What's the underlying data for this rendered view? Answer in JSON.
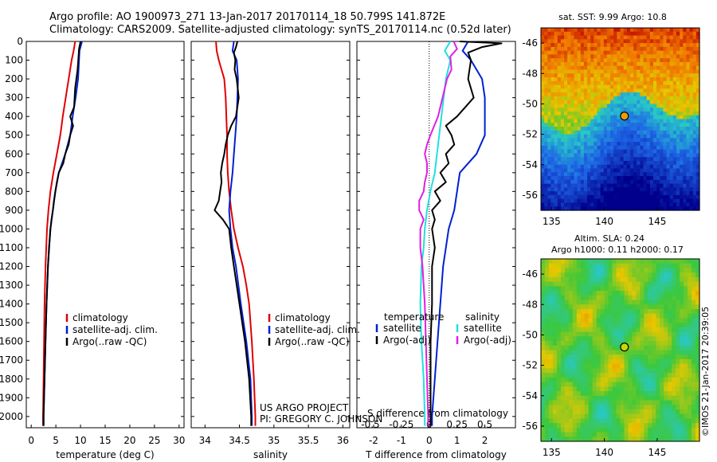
{
  "header": {
    "line1": "Argo profile: AO 1900973_271 13-Jan-2017 20170114_18 50.799S 141.872E",
    "line2": "Climatology: CARS2009. Satellite-adjusted climatology: synTS_20170114.nc (0.52d later)"
  },
  "credits": {
    "project": "US ARGO PROJECT",
    "pi": "PI: GREGORY C. JOHNSON",
    "imos": "©IMOS 21-Jan-2017 20:39:05"
  },
  "colors": {
    "climatology": "#e00000",
    "satellite": "#0020d0",
    "argo": "#000000",
    "t_sat": "#0020d0",
    "t_argo": "#000000",
    "s_sat": "#20e0e0",
    "s_argo": "#e020e0"
  },
  "chart_data": [
    {
      "id": "temperature",
      "type": "line",
      "xlabel": "temperature (deg C)",
      "ylabel": "",
      "xlim": [
        -1,
        31
      ],
      "ylim": [
        0,
        2060
      ],
      "y_inverted": true,
      "xticks": [
        0,
        5,
        10,
        15,
        20,
        25,
        30
      ],
      "yticks": [
        0,
        100,
        200,
        300,
        400,
        500,
        600,
        700,
        800,
        900,
        1000,
        1100,
        1200,
        1300,
        1400,
        1500,
        1600,
        1700,
        1800,
        1900,
        2000
      ],
      "legend": [
        "climatology",
        "satellite-adj. clim.",
        "Argo(..raw -QC)"
      ],
      "series": [
        {
          "name": "climatology",
          "depth": [
            0,
            50,
            100,
            200,
            300,
            400,
            500,
            600,
            700,
            800,
            900,
            1000,
            1200,
            1400,
            1600,
            1800,
            2000,
            2050
          ],
          "values": [
            8.9,
            8.6,
            8.2,
            7.6,
            7.0,
            6.4,
            5.9,
            5.2,
            4.5,
            3.9,
            3.5,
            3.2,
            2.9,
            2.7,
            2.6,
            2.5,
            2.4,
            2.4
          ]
        },
        {
          "name": "satellite-adj. clim.",
          "depth": [
            0,
            50,
            100,
            200,
            300,
            400,
            500,
            600,
            700,
            800,
            900,
            1000,
            1200,
            1400,
            1600,
            1800,
            2000,
            2050
          ],
          "values": [
            10.3,
            9.8,
            9.7,
            9.5,
            9.0,
            8.4,
            7.9,
            6.9,
            5.6,
            4.9,
            4.4,
            3.9,
            3.4,
            3.1,
            2.9,
            2.7,
            2.5,
            2.5
          ]
        },
        {
          "name": "Argo(..raw -QC)",
          "depth": [
            0,
            40,
            80,
            150,
            250,
            350,
            400,
            450,
            500,
            550,
            600,
            650,
            700,
            750,
            800,
            850,
            900,
            950,
            1000,
            1100,
            1200,
            1400,
            1600,
            1800,
            2000,
            2050
          ],
          "values": [
            10.0,
            9.7,
            9.6,
            9.4,
            8.9,
            8.7,
            7.9,
            8.5,
            7.9,
            7.6,
            6.9,
            6.5,
            5.6,
            5.2,
            4.9,
            4.6,
            4.4,
            4.1,
            3.9,
            3.6,
            3.4,
            3.1,
            2.9,
            2.7,
            2.5,
            2.5
          ]
        }
      ]
    },
    {
      "id": "salinity",
      "type": "line",
      "xlabel": "salinity",
      "ylabel": "",
      "xlim": [
        33.8,
        36.1
      ],
      "ylim": [
        0,
        2060
      ],
      "y_inverted": true,
      "xticks": [
        34,
        34.5,
        35,
        35.5,
        36
      ],
      "legend": [
        "climatology",
        "satellite-adj. clim.",
        "Argo(..raw -QC)"
      ],
      "series": [
        {
          "name": "climatology",
          "depth": [
            0,
            50,
            100,
            200,
            300,
            400,
            500,
            600,
            700,
            800,
            900,
            1000,
            1100,
            1200,
            1300,
            1400,
            1600,
            1800,
            2000,
            2050
          ],
          "values": [
            34.16,
            34.17,
            34.2,
            34.28,
            34.3,
            34.31,
            34.32,
            34.32,
            34.33,
            34.35,
            34.38,
            34.42,
            34.48,
            34.55,
            34.6,
            34.64,
            34.68,
            34.71,
            34.73,
            34.73
          ]
        },
        {
          "name": "satellite-adj. clim.",
          "depth": [
            0,
            50,
            100,
            200,
            300,
            400,
            500,
            600,
            700,
            800,
            900,
            1000,
            1100,
            1200,
            1400,
            1600,
            1800,
            2000,
            2050
          ],
          "values": [
            34.42,
            34.4,
            34.46,
            34.48,
            34.47,
            34.46,
            34.44,
            34.42,
            34.4,
            34.37,
            34.35,
            34.37,
            34.4,
            34.45,
            34.52,
            34.6,
            34.66,
            34.68,
            34.68
          ]
        },
        {
          "name": "Argo(..raw -QC)",
          "depth": [
            0,
            30,
            60,
            100,
            150,
            200,
            300,
            400,
            450,
            500,
            550,
            600,
            650,
            700,
            750,
            800,
            850,
            900,
            950,
            1000,
            1100,
            1200,
            1400,
            1600,
            1800,
            2000,
            2050
          ],
          "values": [
            34.47,
            34.45,
            34.42,
            34.44,
            34.43,
            34.46,
            34.49,
            34.45,
            34.38,
            34.33,
            34.3,
            34.28,
            34.25,
            34.23,
            34.24,
            34.22,
            34.2,
            34.14,
            34.26,
            34.35,
            34.38,
            34.42,
            34.5,
            34.58,
            34.64,
            34.67,
            34.67
          ]
        }
      ]
    },
    {
      "id": "differences",
      "type": "line",
      "xlabel": "T difference from climatology",
      "xlabel_top": "S difference from climatology",
      "xlim": [
        -2.6,
        3.1
      ],
      "ylim": [
        0,
        2060
      ],
      "y_inverted": true,
      "xticks": [
        -2,
        -1,
        0,
        1,
        2
      ],
      "sticks_label": [
        "-0.5",
        "-0.25",
        "0",
        "0.25",
        "0.5"
      ],
      "legend_titles": {
        "temperature": "temperature",
        "salinity": "salinity"
      },
      "legend_t": [
        "satellite",
        "Argo(-adj)"
      ],
      "legend_s": [
        "satellite",
        "Argo(-adj)"
      ],
      "series": [
        {
          "name": "satellite",
          "group": "temperature",
          "depth": [
            0,
            50,
            100,
            200,
            300,
            400,
            500,
            600,
            700,
            800,
            900,
            1000,
            1200,
            1400,
            1600,
            1800,
            2000,
            2050
          ],
          "values": [
            1.4,
            1.2,
            1.5,
            1.9,
            2.0,
            2.0,
            2.0,
            1.7,
            1.1,
            1.0,
            0.9,
            0.7,
            0.5,
            0.4,
            0.3,
            0.2,
            0.1,
            0.1
          ]
        },
        {
          "name": "Argo(-adj)",
          "group": "temperature",
          "depth": [
            0,
            10,
            30,
            60,
            100,
            200,
            300,
            400,
            450,
            500,
            550,
            600,
            650,
            700,
            750,
            800,
            850,
            900,
            950,
            1000,
            1100,
            1200,
            1400,
            1600,
            1800,
            2000,
            2050
          ],
          "values": [
            1.1,
            2.6,
            1.9,
            1.4,
            1.5,
            1.4,
            1.6,
            1.0,
            0.6,
            0.8,
            0.9,
            0.6,
            0.7,
            0.4,
            0.6,
            0.2,
            0.4,
            0.1,
            0.2,
            0.1,
            0.2,
            0.1,
            0.1,
            0.05,
            0.05,
            0.05,
            0.05
          ]
        },
        {
          "name": "satellite",
          "group": "salinity",
          "depth": [
            0,
            50,
            100,
            200,
            300,
            400,
            500,
            600,
            700,
            800,
            900,
            1000,
            1100,
            1200,
            1400,
            1600,
            1800,
            2000,
            2050
          ],
          "values": [
            0.19,
            0.14,
            0.19,
            0.15,
            0.13,
            0.11,
            0.09,
            0.07,
            0.05,
            0.01,
            -0.02,
            -0.04,
            -0.05,
            -0.07,
            -0.08,
            -0.07,
            -0.05,
            -0.04,
            -0.04
          ]
        },
        {
          "name": "Argo(-adj)",
          "group": "salinity",
          "depth": [
            0,
            40,
            80,
            150,
            200,
            300,
            400,
            500,
            550,
            600,
            650,
            700,
            750,
            800,
            850,
            900,
            950,
            1000,
            1050,
            1100,
            1200,
            1400,
            1600,
            1800,
            2000,
            2050
          ],
          "values": [
            0.22,
            0.25,
            0.19,
            0.2,
            0.16,
            0.12,
            0.08,
            0.01,
            -0.02,
            -0.04,
            -0.02,
            -0.02,
            -0.04,
            -0.05,
            -0.09,
            -0.09,
            -0.05,
            -0.08,
            -0.08,
            -0.08,
            -0.06,
            -0.04,
            -0.03,
            -0.02,
            -0.01,
            -0.01
          ]
        }
      ]
    },
    {
      "id": "sst_map",
      "type": "heatmap",
      "title": "sat. SST: 9.99 Argo: 10.8",
      "xlim": [
        134,
        149
      ],
      "ylim": [
        -57,
        -45
      ],
      "xticks": [
        135,
        140,
        145
      ],
      "yticks": [
        -46,
        -48,
        -50,
        -52,
        -54,
        -56
      ],
      "marker": {
        "lon": 141.9,
        "lat": -50.8
      }
    },
    {
      "id": "sla_map",
      "type": "heatmap",
      "title": "Altim. SLA: 0.24",
      "subtitle": "Argo h1000: 0.11 h2000: 0.17",
      "xlim": [
        134,
        149
      ],
      "ylim": [
        -57,
        -45
      ],
      "xticks": [
        135,
        140,
        145
      ],
      "yticks": [
        -46,
        -48,
        -50,
        -52,
        -54,
        -56
      ],
      "marker": {
        "lon": 141.9,
        "lat": -50.8
      }
    }
  ]
}
